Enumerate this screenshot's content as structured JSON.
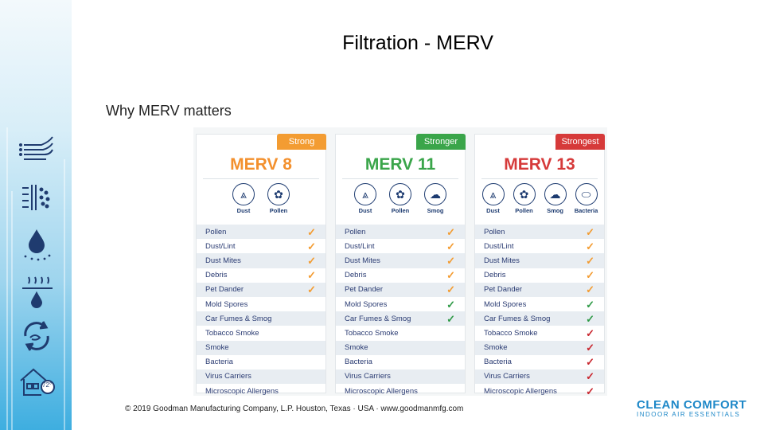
{
  "slide": {
    "title": "Filtration - MERV",
    "subtitle": "Why MERV matters",
    "footer": "© 2019 Goodman Manufacturing Company, L.P. Houston, Texas · USA · www.goodmanmfg.com"
  },
  "logo": {
    "line1": "CLEAN COMFORT",
    "line2": "INDOOR AIR ESSENTIALS"
  },
  "sidebar_icons": [
    {
      "icon": "airflow-icon"
    },
    {
      "icon": "filter-icon"
    },
    {
      "icon": "water-drop-icon"
    },
    {
      "icon": "humidity-icon"
    },
    {
      "icon": "recycle-icon"
    },
    {
      "icon": "house-thermostat-icon",
      "label": "72°"
    }
  ],
  "table": {
    "colors": {
      "strong": "#f39c32",
      "stronger": "#3aa54a",
      "strongest": "#d63a3a",
      "orange_check": "#f39c32",
      "green_check": "#2f9a47",
      "red_check": "#c9272f",
      "merv8": "#f3902d",
      "merv11": "#3aa54a",
      "merv13": "#d63a3a"
    },
    "columns": [
      {
        "tab": "Strong",
        "title": "MERV 8",
        "particles": [
          "Dust",
          "Pollen"
        ],
        "rows": [
          {
            "label": "Pollen",
            "check": "orange"
          },
          {
            "label": "Dust/Lint",
            "check": "orange"
          },
          {
            "label": "Dust Mites",
            "check": "orange"
          },
          {
            "label": "Debris",
            "check": "orange"
          },
          {
            "label": "Pet Dander",
            "check": "orange"
          },
          {
            "label": "Mold Spores",
            "check": ""
          },
          {
            "label": "Car Fumes & Smog",
            "check": ""
          },
          {
            "label": "Tobacco Smoke",
            "check": ""
          },
          {
            "label": "Smoke",
            "check": ""
          },
          {
            "label": "Bacteria",
            "check": ""
          },
          {
            "label": "Virus Carriers",
            "check": ""
          },
          {
            "label": "Microscopic Allergens",
            "check": ""
          }
        ]
      },
      {
        "tab": "Stronger",
        "title": "MERV 11",
        "particles": [
          "Dust",
          "Pollen",
          "Smog"
        ],
        "rows": [
          {
            "label": "Pollen",
            "check": "orange"
          },
          {
            "label": "Dust/Lint",
            "check": "orange"
          },
          {
            "label": "Dust Mites",
            "check": "orange"
          },
          {
            "label": "Debris",
            "check": "orange"
          },
          {
            "label": "Pet Dander",
            "check": "orange"
          },
          {
            "label": "Mold Spores",
            "check": "green"
          },
          {
            "label": "Car Fumes & Smog",
            "check": "green"
          },
          {
            "label": "Tobacco Smoke",
            "check": ""
          },
          {
            "label": "Smoke",
            "check": ""
          },
          {
            "label": "Bacteria",
            "check": ""
          },
          {
            "label": "Virus Carriers",
            "check": ""
          },
          {
            "label": "Microscopic Allergens",
            "check": ""
          }
        ]
      },
      {
        "tab": "Strongest",
        "title": "MERV 13",
        "particles": [
          "Dust",
          "Pollen",
          "Smog",
          "Bacteria"
        ],
        "rows": [
          {
            "label": "Pollen",
            "check": "orange"
          },
          {
            "label": "Dust/Lint",
            "check": "orange"
          },
          {
            "label": "Dust Mites",
            "check": "orange"
          },
          {
            "label": "Debris",
            "check": "orange"
          },
          {
            "label": "Pet Dander",
            "check": "orange"
          },
          {
            "label": "Mold Spores",
            "check": "green"
          },
          {
            "label": "Car Fumes & Smog",
            "check": "green"
          },
          {
            "label": "Tobacco Smoke",
            "check": "red"
          },
          {
            "label": "Smoke",
            "check": "red"
          },
          {
            "label": "Bacteria",
            "check": "red"
          },
          {
            "label": "Virus Carriers",
            "check": "red"
          },
          {
            "label": "Microscopic Allergens",
            "check": "red"
          }
        ]
      }
    ]
  }
}
